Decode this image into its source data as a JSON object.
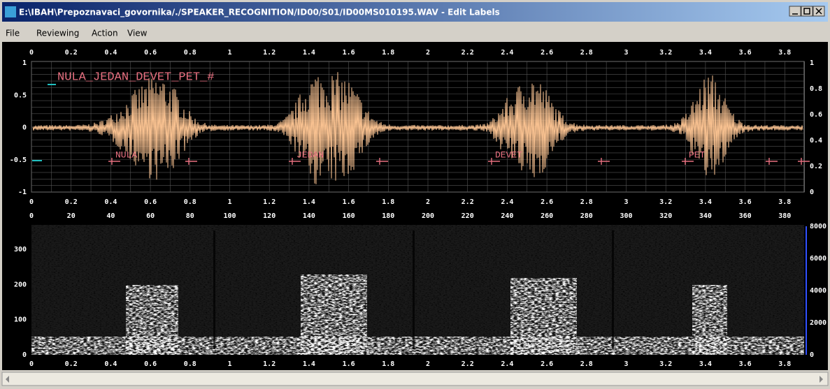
{
  "window": {
    "title": "E:\\IBAH\\Prepoznavaci_govornika/./SPEAKER_RECOGNITION/ID00/S01/ID00MS010195.WAV - Edit Labels"
  },
  "menu": [
    "File",
    "Reviewing",
    "Action",
    "View"
  ],
  "waveform": {
    "top_ticks": [
      "0",
      "0.2",
      "0.4",
      "0.6",
      "0.8",
      "1",
      "1.2",
      "1.4",
      "1.6",
      "1.8",
      "2",
      "2.2",
      "2.4",
      "2.6",
      "2.8",
      "3",
      "3.2",
      "3.4",
      "3.6",
      "3.8"
    ],
    "left_ticks": [
      "1",
      "0.5",
      "0",
      "-0.5",
      "-1"
    ],
    "right_ticks": [
      "1",
      "0.8",
      "0.6",
      "0.4",
      "0.2",
      "0"
    ],
    "bottom_ticks": [
      "0",
      "0.2",
      "0.4",
      "0.6",
      "0.8",
      "1",
      "1.2",
      "1.4",
      "1.6",
      "1.8",
      "2",
      "2.2",
      "2.4",
      "2.6",
      "2.8",
      "3",
      "3.2",
      "3.4",
      "3.6",
      "3.8"
    ],
    "transcript": "NULA_JEDAN_DEVET_PET_#",
    "words": [
      "NULA",
      "JEDAN",
      "DEVET",
      "PET"
    ]
  },
  "spectrogram": {
    "frame_ticks": [
      "0",
      "20",
      "40",
      "60",
      "80",
      "100",
      "120",
      "140",
      "160",
      "180",
      "200",
      "220",
      "240",
      "260",
      "280",
      "300",
      "320",
      "340",
      "360",
      "380"
    ],
    "left_ticks": [
      "0",
      "100",
      "200",
      "300"
    ],
    "right_ticks": [
      "0",
      "2000",
      "4000",
      "6000",
      "8000"
    ],
    "time_ticks": [
      "0",
      "0.2",
      "0.4",
      "0.6",
      "0.8",
      "1",
      "1.2",
      "1.4",
      "1.6",
      "1.8",
      "2",
      "2.2",
      "2.4",
      "2.6",
      "2.8",
      "3",
      "3.2",
      "3.4",
      "3.6",
      "3.8"
    ]
  }
}
